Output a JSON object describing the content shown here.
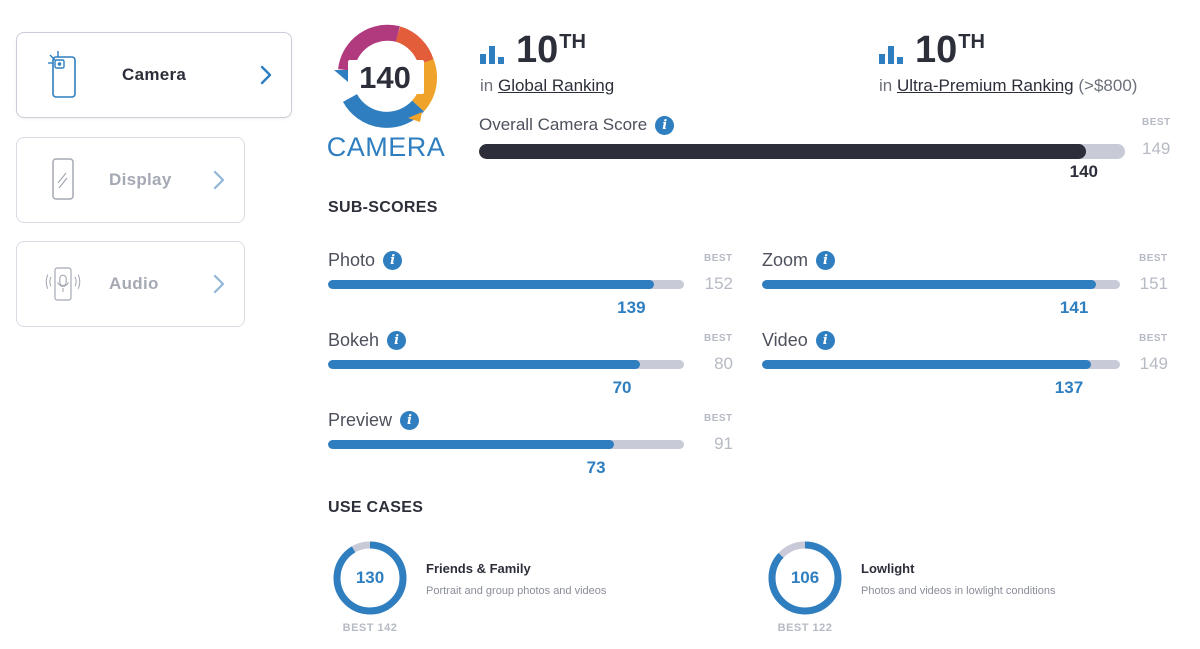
{
  "sidebar": {
    "tabs": [
      {
        "label": "Camera",
        "icon": "camera-phone-icon",
        "active": true
      },
      {
        "label": "Display",
        "icon": "phone-display-icon",
        "active": false
      },
      {
        "label": "Audio",
        "icon": "phone-audio-icon",
        "active": false
      }
    ]
  },
  "badge": {
    "score": "140",
    "label": "CAMERA"
  },
  "global_ranking": {
    "number": "10",
    "suffix": "TH",
    "prefix": "in",
    "link": "Global Ranking"
  },
  "segment_ranking": {
    "number": "10",
    "suffix": "TH",
    "prefix": "in",
    "link": "Ultra-Premium Ranking",
    "note": "(>$800)"
  },
  "overall": {
    "label": "Overall Camera Score",
    "score": 140,
    "best_label": "BEST",
    "best": 149
  },
  "subscores": {
    "title": "SUB-SCORES",
    "best_label": "BEST",
    "items": [
      {
        "label": "Photo",
        "score": 139,
        "best": 152
      },
      {
        "label": "Zoom",
        "score": 141,
        "best": 151
      },
      {
        "label": "Bokeh",
        "score": 70,
        "best": 80
      },
      {
        "label": "Video",
        "score": 137,
        "best": 149
      },
      {
        "label": "Preview",
        "score": 73,
        "best": 91
      }
    ]
  },
  "use_cases": {
    "title": "USE CASES",
    "items": [
      {
        "title": "Friends & Family",
        "description": "Portrait and group photos and videos",
        "score": 130,
        "best_text": "BEST 142"
      },
      {
        "title": "Lowlight",
        "description": "Photos and videos in lowlight conditions",
        "score": 106,
        "best_text": "BEST 122"
      }
    ]
  },
  "colors": {
    "accent": "#2e7ec0",
    "dark": "#2c2f3a",
    "track": "#c8cad8",
    "muted": "#b6bac4"
  }
}
